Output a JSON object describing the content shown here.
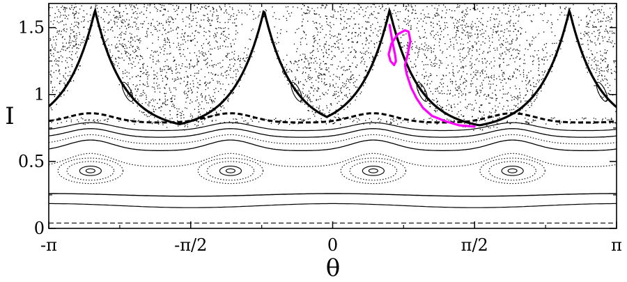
{
  "chart_data": {
    "type": "scatter",
    "title": "",
    "xlabel": "θ",
    "ylabel": "I",
    "xlim": [
      -3.14159,
      3.14159
    ],
    "ylim": [
      0,
      1.68
    ],
    "grid": false,
    "x_ticks": [
      {
        "value": -3.14159,
        "label": "-π"
      },
      {
        "value": -1.5708,
        "label": "-π/2"
      },
      {
        "value": 0,
        "label": "0"
      },
      {
        "value": 1.5708,
        "label": "π/2"
      },
      {
        "value": 3.14159,
        "label": "π"
      }
    ],
    "y_ticks": [
      {
        "value": 0,
        "label": "0"
      },
      {
        "value": 0.5,
        "label": "0.5"
      },
      {
        "value": 1,
        "label": "1"
      },
      {
        "value": 1.5,
        "label": "1.5"
      }
    ],
    "colors": {
      "curves": "#000000",
      "highlight": "#ff00ff",
      "scatter": "#000000"
    },
    "rotational_curves": [
      {
        "base": 0.04,
        "amp": 0.0,
        "style": "dashed",
        "width": 1.2
      },
      {
        "base": 0.17,
        "amp": 0.015,
        "style": "solid",
        "width": 1.2
      },
      {
        "base": 0.25,
        "amp": 0.01,
        "style": "solid",
        "width": 1.4
      }
    ],
    "separatrix_curves": [
      {
        "base": 0.46,
        "amp": 0.1,
        "style": "dotted",
        "width": 1.1
      },
      {
        "base": 0.58,
        "amp": 0.08,
        "style": "solid",
        "width": 1.3
      },
      {
        "base": 0.63,
        "amp": 0.07,
        "style": "dotted",
        "width": 1.1
      },
      {
        "base": 0.68,
        "amp": 0.065,
        "style": "solid",
        "width": 1.3
      },
      {
        "base": 0.73,
        "amp": 0.06,
        "style": "solid",
        "width": 1.2
      },
      {
        "base": 0.79,
        "amp": 0.07,
        "style": "dashed",
        "width": 3
      }
    ],
    "islands": {
      "centers_theta": [
        -2.68,
        -1.13,
        0.45,
        1.99
      ],
      "center_I": 0.43,
      "rings": [
        {
          "dtheta": 0.05,
          "dI": 0.015,
          "style": "solid"
        },
        {
          "dtheta": 0.12,
          "dI": 0.035,
          "style": "solid"
        },
        {
          "dtheta": 0.26,
          "dI": 0.07,
          "style": "dotted"
        },
        {
          "dtheta": 0.36,
          "dI": 0.095,
          "style": "dotted"
        }
      ]
    },
    "chaotic_boundary": {
      "peaks_theta": [
        -2.63,
        -0.76,
        0.63,
        2.62
      ],
      "peak_I": 1.63,
      "trough_I": 0.73
    },
    "highlight_trajectory": {
      "x": [
        0.63,
        0.66,
        0.69,
        0.7,
        0.68,
        0.64,
        0.62,
        0.65,
        0.72,
        0.8,
        0.84,
        0.86,
        0.83,
        0.8,
        0.82,
        0.87,
        0.93,
        1.0,
        1.1,
        1.25,
        1.4,
        1.57
      ],
      "y": [
        1.52,
        1.4,
        1.3,
        1.25,
        1.22,
        1.25,
        1.3,
        1.38,
        1.45,
        1.48,
        1.47,
        1.4,
        1.3,
        1.22,
        1.15,
        1.05,
        0.97,
        0.9,
        0.84,
        0.8,
        0.77,
        0.76
      ]
    },
    "scatter_density": 6000
  }
}
